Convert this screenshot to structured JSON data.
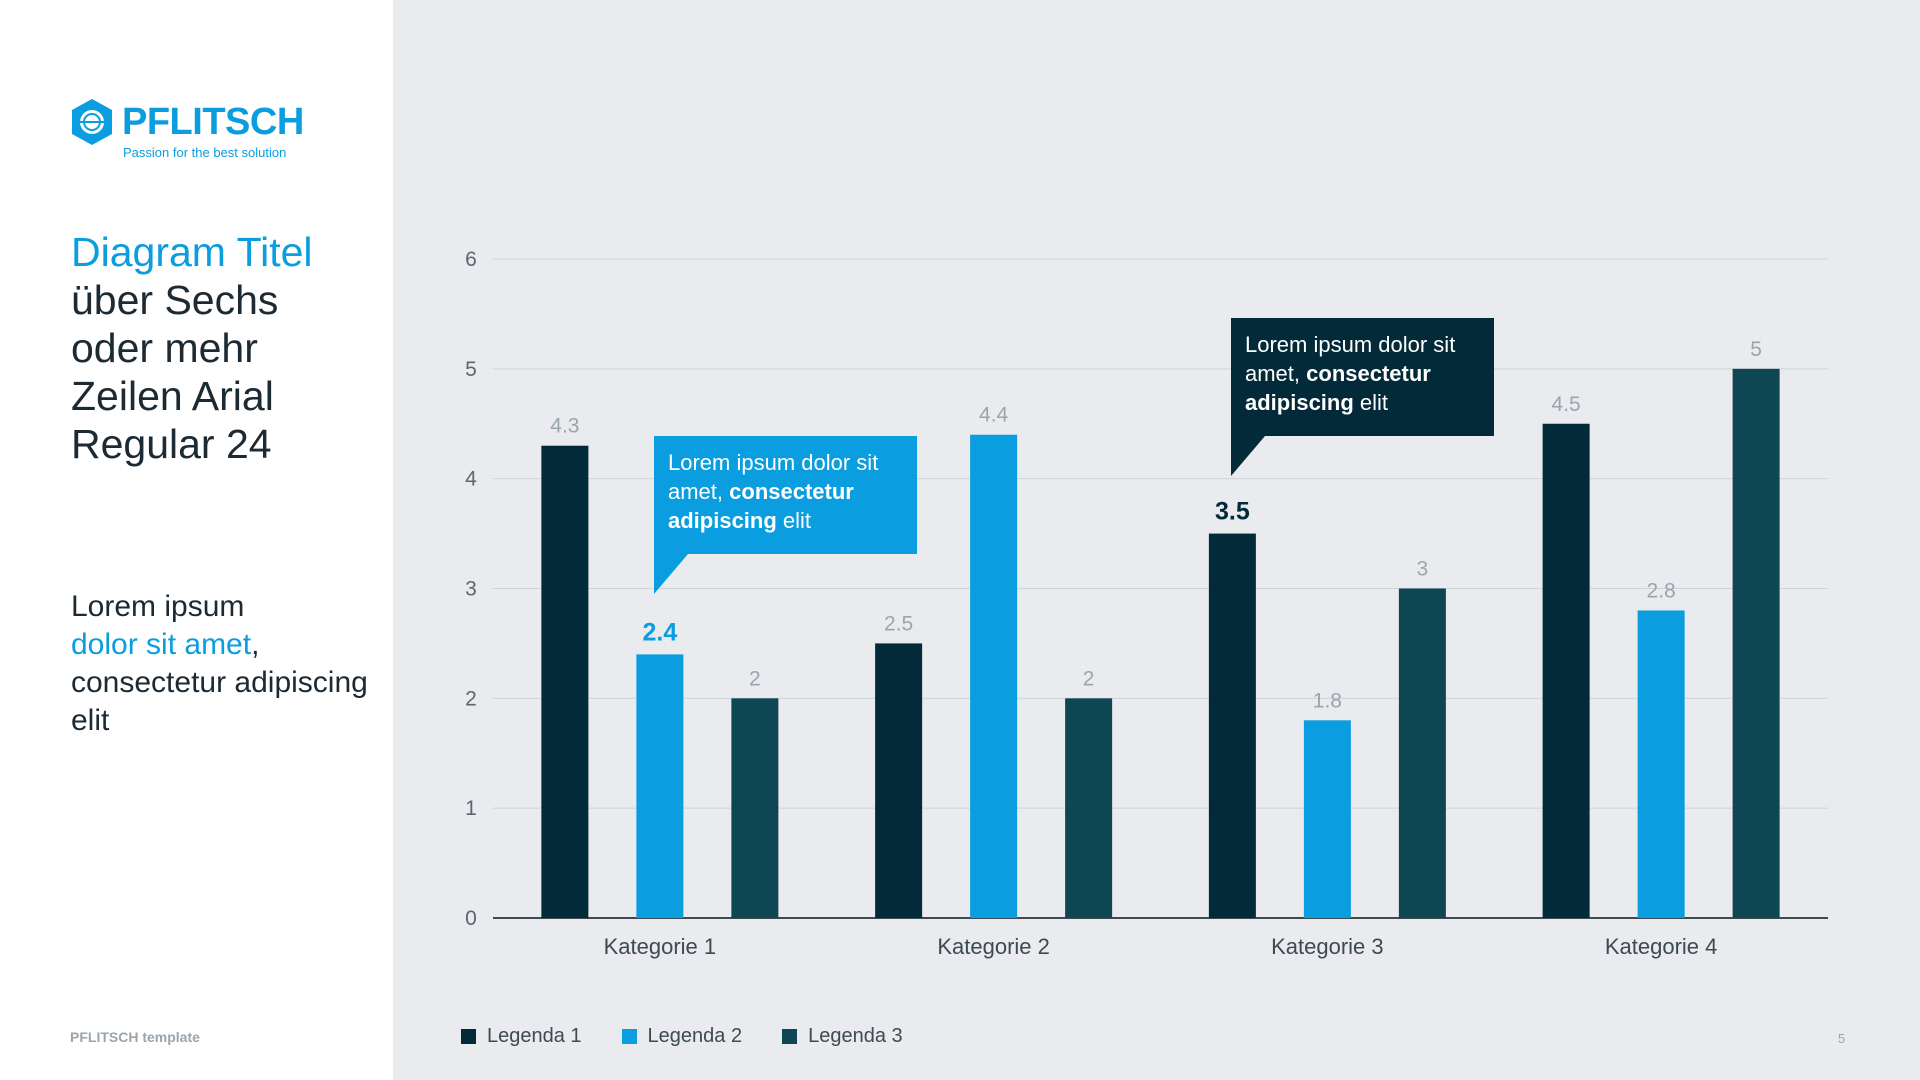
{
  "brand": {
    "name": "PFLITSCH",
    "tagline": "Passion for the best solution"
  },
  "slide": {
    "title_accent": "Diagram Titel",
    "title_rest": "über Sechs oder mehr Zeilen Arial Regular 24",
    "body_line1": "Lorem ipsum",
    "body_accent": "dolor sit amet",
    "body_comma": ",",
    "body_rest": "consectetur adipiscing elit",
    "footer": "PFLITSCH template",
    "page_number": "5"
  },
  "callouts": [
    {
      "normal1": "Lorem ipsum dolor sit amet, ",
      "bold": "consectetur adipiscing",
      "normal2": " elit",
      "color": "#0a9ddf"
    },
    {
      "normal1": "Lorem ipsum dolor sit amet, ",
      "bold": "consectetur adipiscing",
      "normal2": " elit",
      "color": "#032a38"
    }
  ],
  "chart_data": {
    "type": "bar",
    "categories": [
      "Kategorie 1",
      "Kategorie 2",
      "Kategorie 3",
      "Kategorie 4"
    ],
    "series": [
      {
        "name": "Legenda 1",
        "values": [
          4.3,
          2.5,
          3.5,
          4.5
        ],
        "color": "#032a38"
      },
      {
        "name": "Legenda 2",
        "values": [
          2.4,
          4.4,
          1.8,
          2.8
        ],
        "color": "#0a9ddf"
      },
      {
        "name": "Legenda 3",
        "values": [
          2,
          2,
          3,
          5
        ],
        "color": "#0e4654"
      }
    ],
    "ylim": [
      0,
      6
    ],
    "yticks": [
      0,
      1,
      2,
      3,
      4,
      5,
      6
    ],
    "grid": true,
    "legend_position": "bottom-left",
    "highlighted_labels": [
      {
        "series": 1,
        "category": 0,
        "color": "#0a9ddf"
      },
      {
        "series": 0,
        "category": 2,
        "color": "#032a38"
      }
    ]
  }
}
